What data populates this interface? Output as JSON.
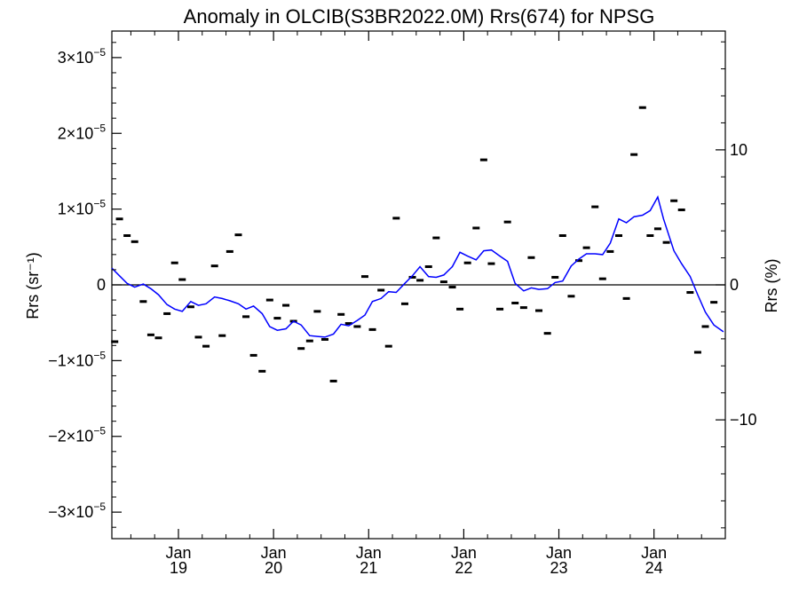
{
  "chart_data": {
    "type": "scatter",
    "title": "Anomaly in OLCIB(S3BR2022.0M) Rrs(674) for NPSG",
    "ylabel_left": "Rrs (sr⁻¹)",
    "ylabel_right": "Rrs (%)",
    "ylim": [
      -3.35e-05,
      3.35e-05
    ],
    "ylim_right": [
      -18.8,
      18.8
    ],
    "xlim": [
      2018.3,
      2024.75
    ],
    "left_ticks": [
      {
        "value": 3e-05,
        "mant": "3",
        "exp": "−5"
      },
      {
        "value": 2e-05,
        "mant": "2",
        "exp": "−5"
      },
      {
        "value": 1e-05,
        "mant": "1",
        "exp": "−5"
      },
      {
        "value": 0,
        "label": "0"
      },
      {
        "value": -1e-05,
        "mant": "−1",
        "exp": "−5"
      },
      {
        "value": -2e-05,
        "mant": "−2",
        "exp": "−5"
      },
      {
        "value": -3e-05,
        "mant": "−3",
        "exp": "−5"
      }
    ],
    "right_ticks": [
      {
        "value": 10,
        "label": "10"
      },
      {
        "value": 0,
        "label": "0"
      },
      {
        "value": -10,
        "label": "−10"
      }
    ],
    "x_ticks": [
      {
        "value": 2019.0,
        "month": "Jan",
        "year": "19"
      },
      {
        "value": 2020.0,
        "month": "Jan",
        "year": "20"
      },
      {
        "value": 2021.0,
        "month": "Jan",
        "year": "21"
      },
      {
        "value": 2022.0,
        "month": "Jan",
        "year": "22"
      },
      {
        "value": 2023.0,
        "month": "Jan",
        "year": "23"
      },
      {
        "value": 2024.0,
        "month": "Jan",
        "year": "24"
      }
    ],
    "zero_line": true,
    "grid": false,
    "line_color": "#0000ff",
    "series": [
      {
        "style": "points",
        "points": [
          [
            2018.33,
            -7.5e-06
          ],
          [
            2018.38,
            8.7e-06
          ],
          [
            2018.46,
            6.5e-06
          ],
          [
            2018.54,
            5.7e-06
          ],
          [
            2018.63,
            -2.2e-06
          ],
          [
            2018.71,
            -6.6e-06
          ],
          [
            2018.79,
            -7e-06
          ],
          [
            2018.88,
            -3.8e-06
          ],
          [
            2018.96,
            2.9e-06
          ],
          [
            2019.04,
            7e-07
          ],
          [
            2019.13,
            -2.9e-06
          ],
          [
            2019.21,
            -6.9e-06
          ],
          [
            2019.29,
            -8.1e-06
          ],
          [
            2019.38,
            2.5e-06
          ],
          [
            2019.46,
            -6.7e-06
          ],
          [
            2019.54,
            4.4e-06
          ],
          [
            2019.63,
            6.6e-06
          ],
          [
            2019.71,
            -4.2e-06
          ],
          [
            2019.79,
            -9.3e-06
          ],
          [
            2019.88,
            -1.14e-05
          ],
          [
            2019.96,
            -2e-06
          ],
          [
            2020.04,
            -4.4e-06
          ],
          [
            2020.13,
            -2.7e-06
          ],
          [
            2020.21,
            -4.8e-06
          ],
          [
            2020.29,
            -8.4e-06
          ],
          [
            2020.38,
            -7.4e-06
          ],
          [
            2020.46,
            -3.5e-06
          ],
          [
            2020.54,
            -7.2e-06
          ],
          [
            2020.63,
            -1.27e-05
          ],
          [
            2020.71,
            -3.9e-06
          ],
          [
            2020.79,
            -5.1e-06
          ],
          [
            2020.88,
            -5.5e-06
          ],
          [
            2020.96,
            1.1e-06
          ],
          [
            2021.04,
            -5.9e-06
          ],
          [
            2021.13,
            -7e-07
          ],
          [
            2021.21,
            -8.1e-06
          ],
          [
            2021.29,
            8.8e-06
          ],
          [
            2021.38,
            -2.5e-06
          ],
          [
            2021.46,
            1e-06
          ],
          [
            2021.54,
            6e-07
          ],
          [
            2021.63,
            2.4e-06
          ],
          [
            2021.71,
            6.2e-06
          ],
          [
            2021.79,
            4e-07
          ],
          [
            2021.88,
            -3e-07
          ],
          [
            2021.96,
            -3.2e-06
          ],
          [
            2022.04,
            2.9e-06
          ],
          [
            2022.13,
            7.5e-06
          ],
          [
            2022.21,
            1.65e-05
          ],
          [
            2022.29,
            2.8e-06
          ],
          [
            2022.38,
            -3.2e-06
          ],
          [
            2022.46,
            8.3e-06
          ],
          [
            2022.54,
            -2.4e-06
          ],
          [
            2022.63,
            -3e-06
          ],
          [
            2022.71,
            3.6e-06
          ],
          [
            2022.79,
            -3.4e-06
          ],
          [
            2022.88,
            -6.4e-06
          ],
          [
            2022.96,
            1e-06
          ],
          [
            2023.04,
            6.5e-06
          ],
          [
            2023.13,
            -1.5e-06
          ],
          [
            2023.21,
            3.2e-06
          ],
          [
            2023.29,
            4.9e-06
          ],
          [
            2023.38,
            1.03e-05
          ],
          [
            2023.46,
            8e-07
          ],
          [
            2023.54,
            4.4e-06
          ],
          [
            2023.63,
            6.5e-06
          ],
          [
            2023.71,
            -1.8e-06
          ],
          [
            2023.79,
            1.72e-05
          ],
          [
            2023.88,
            2.34e-05
          ],
          [
            2023.96,
            6.5e-06
          ],
          [
            2024.04,
            7.4e-06
          ],
          [
            2024.13,
            5.6e-06
          ],
          [
            2024.21,
            1.11e-05
          ],
          [
            2024.29,
            9.9e-06
          ],
          [
            2024.38,
            -1e-06
          ],
          [
            2024.46,
            -8.9e-06
          ],
          [
            2024.54,
            -5.5e-06
          ],
          [
            2024.63,
            -2.3e-06
          ]
        ]
      },
      {
        "style": "line",
        "points": [
          [
            2018.3,
            2.2e-06
          ],
          [
            2018.38,
            1.2e-06
          ],
          [
            2018.46,
            2e-07
          ],
          [
            2018.54,
            -3e-07
          ],
          [
            2018.63,
            1e-07
          ],
          [
            2018.71,
            -5e-07
          ],
          [
            2018.79,
            -1.3e-06
          ],
          [
            2018.88,
            -2.6e-06
          ],
          [
            2018.96,
            -3.2e-06
          ],
          [
            2019.04,
            -3.5e-06
          ],
          [
            2019.13,
            -2.2e-06
          ],
          [
            2019.21,
            -2.7e-06
          ],
          [
            2019.29,
            -2.5e-06
          ],
          [
            2019.38,
            -1.6e-06
          ],
          [
            2019.46,
            -1.8e-06
          ],
          [
            2019.54,
            -2.1e-06
          ],
          [
            2019.63,
            -2.5e-06
          ],
          [
            2019.71,
            -3.2e-06
          ],
          [
            2019.79,
            -2.8e-06
          ],
          [
            2019.88,
            -3.8e-06
          ],
          [
            2019.96,
            -5.5e-06
          ],
          [
            2020.04,
            -6e-06
          ],
          [
            2020.13,
            -5.8e-06
          ],
          [
            2020.21,
            -4.8e-06
          ],
          [
            2020.29,
            -5.3e-06
          ],
          [
            2020.38,
            -6.7e-06
          ],
          [
            2020.46,
            -6.8e-06
          ],
          [
            2020.54,
            -6.9e-06
          ],
          [
            2020.63,
            -6.5e-06
          ],
          [
            2020.71,
            -5.2e-06
          ],
          [
            2020.79,
            -5.4e-06
          ],
          [
            2020.88,
            -4.7e-06
          ],
          [
            2020.96,
            -4e-06
          ],
          [
            2021.04,
            -2.2e-06
          ],
          [
            2021.13,
            -1.8e-06
          ],
          [
            2021.21,
            -9e-07
          ],
          [
            2021.29,
            -1e-06
          ],
          [
            2021.38,
            2e-07
          ],
          [
            2021.46,
            1.2e-06
          ],
          [
            2021.54,
            2.4e-06
          ],
          [
            2021.63,
            1.1e-06
          ],
          [
            2021.71,
            1e-06
          ],
          [
            2021.79,
            1.3e-06
          ],
          [
            2021.88,
            2.4e-06
          ],
          [
            2021.96,
            4.3e-06
          ],
          [
            2022.04,
            3.8e-06
          ],
          [
            2022.13,
            3.3e-06
          ],
          [
            2022.21,
            4.5e-06
          ],
          [
            2022.29,
            4.6e-06
          ],
          [
            2022.38,
            3.8e-06
          ],
          [
            2022.46,
            3.1e-06
          ],
          [
            2022.54,
            2e-07
          ],
          [
            2022.63,
            -8e-07
          ],
          [
            2022.71,
            -4e-07
          ],
          [
            2022.79,
            -6e-07
          ],
          [
            2022.88,
            -5e-07
          ],
          [
            2022.96,
            3e-07
          ],
          [
            2023.04,
            5e-07
          ],
          [
            2023.13,
            2.5e-06
          ],
          [
            2023.21,
            3.4e-06
          ],
          [
            2023.29,
            4.1e-06
          ],
          [
            2023.38,
            4.1e-06
          ],
          [
            2023.46,
            4e-06
          ],
          [
            2023.54,
            5.5e-06
          ],
          [
            2023.63,
            8.7e-06
          ],
          [
            2023.71,
            8.2e-06
          ],
          [
            2023.79,
            9e-06
          ],
          [
            2023.88,
            9.2e-06
          ],
          [
            2023.96,
            9.8e-06
          ],
          [
            2024.04,
            1.16e-05
          ],
          [
            2024.1,
            8.7e-06
          ],
          [
            2024.21,
            4.5e-06
          ],
          [
            2024.29,
            2.8e-06
          ],
          [
            2024.38,
            1.1e-06
          ],
          [
            2024.46,
            -1.3e-06
          ],
          [
            2024.54,
            -3.6e-06
          ],
          [
            2024.63,
            -5.3e-06
          ],
          [
            2024.73,
            -6.2e-06
          ]
        ]
      }
    ]
  }
}
